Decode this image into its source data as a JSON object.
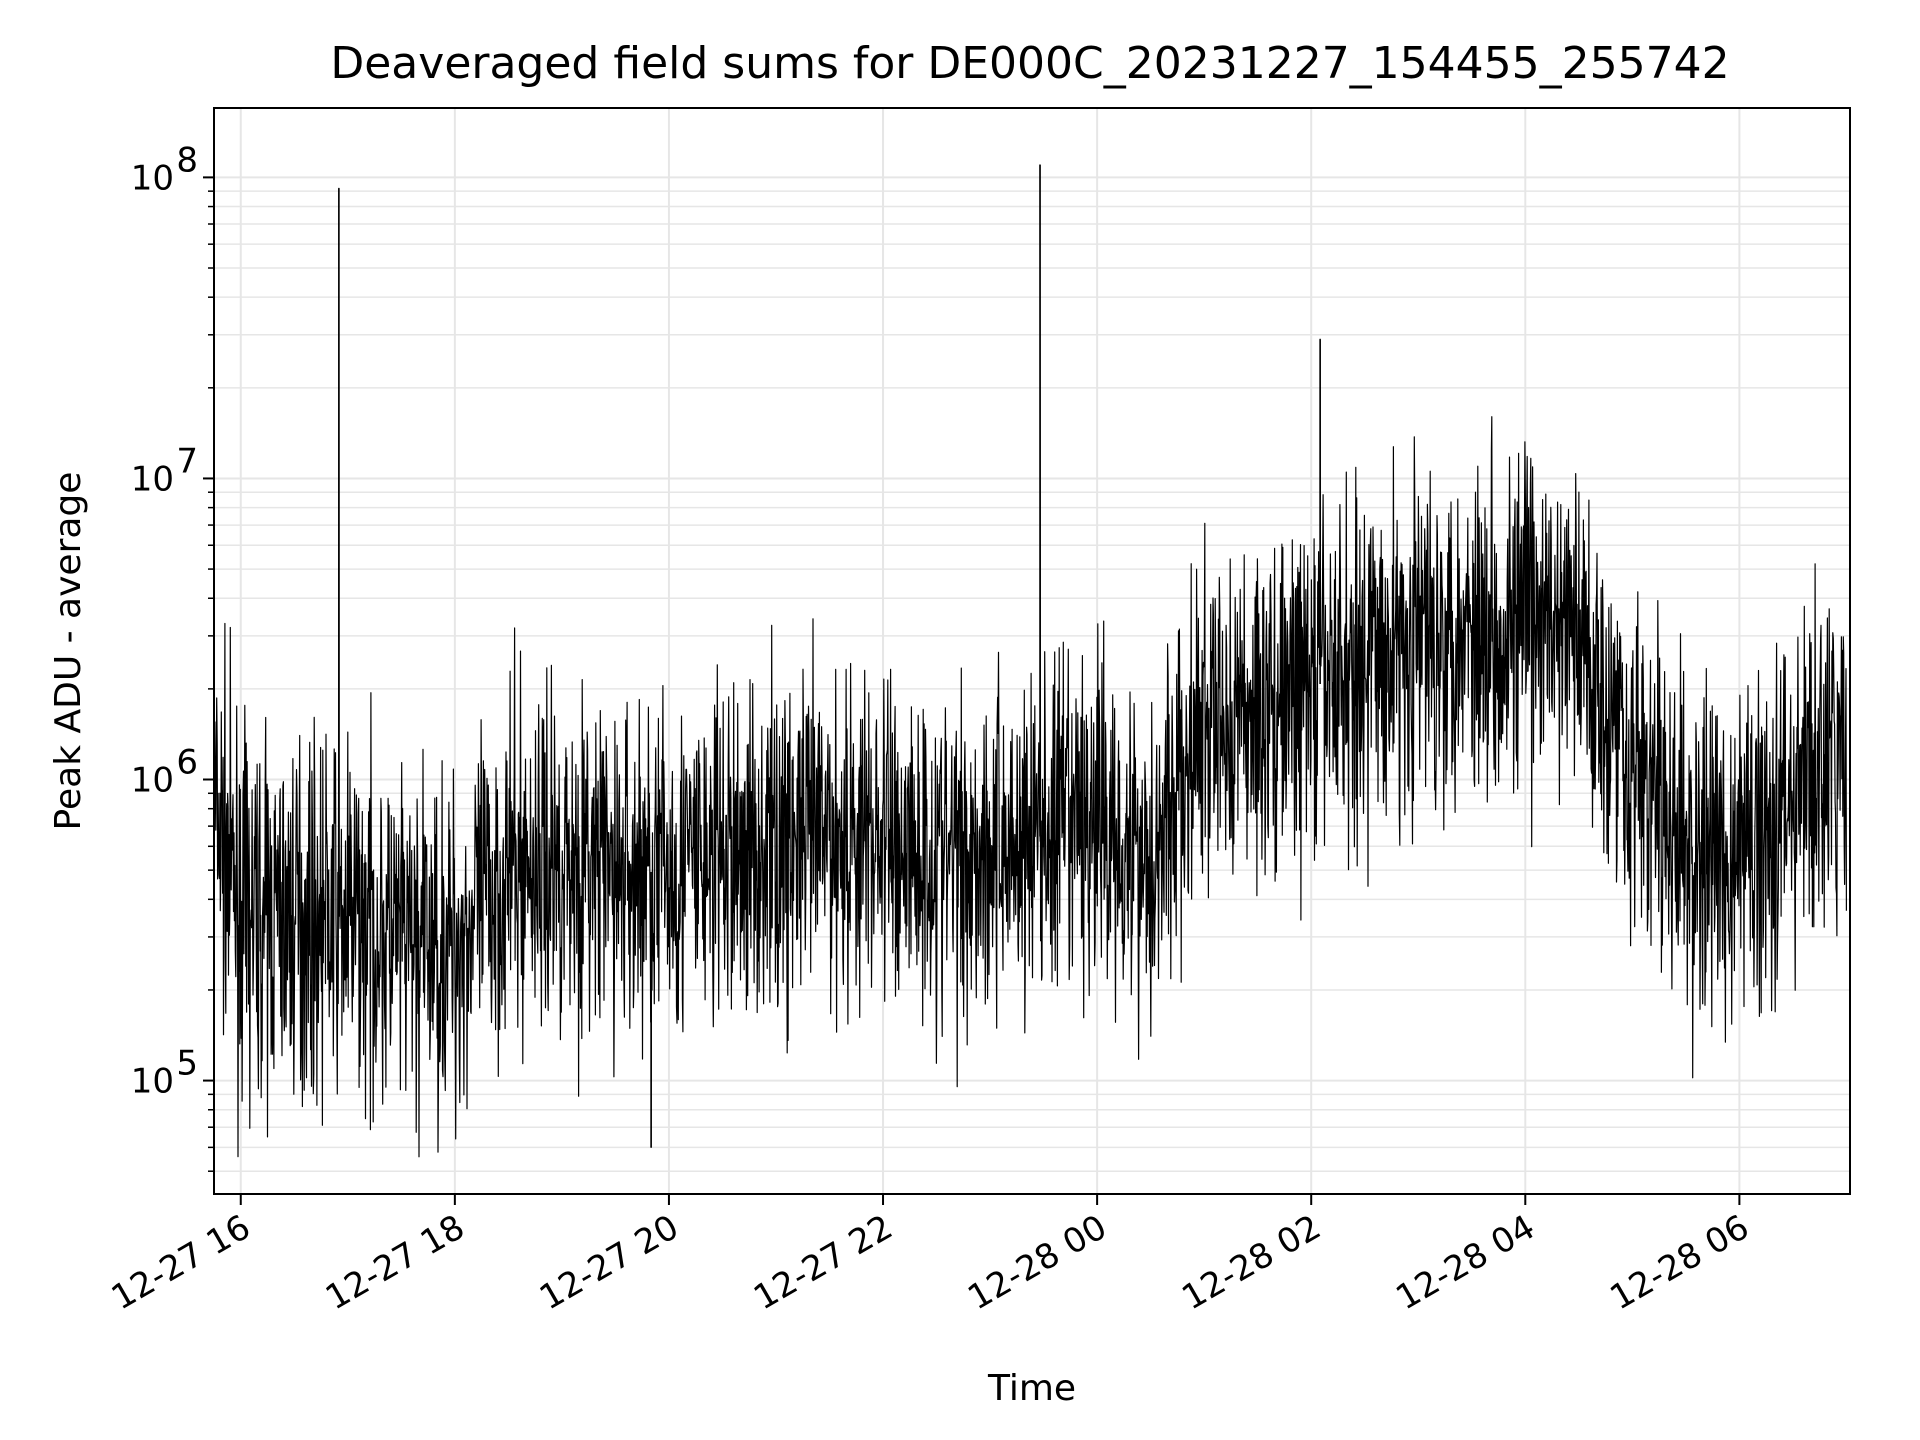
{
  "chart_data": {
    "type": "line",
    "title": "Deaveraged field sums for DE000C_20231227_154455_255742",
    "xlabel": "Time",
    "ylabel": "Peak ADU - average",
    "y_scale": "log",
    "ylim": [
      42000,
      170000000
    ],
    "xlim": [
      "2023-12-27 15:45",
      "2023-12-28 07:02"
    ],
    "grid": true,
    "grid_color": "#e6e6e6",
    "line_color": "#000000",
    "x_ticks": [
      {
        "label": "12-27 16",
        "t": "2023-12-27 16:00"
      },
      {
        "label": "12-27 18",
        "t": "2023-12-27 18:00"
      },
      {
        "label": "12-27 20",
        "t": "2023-12-27 20:00"
      },
      {
        "label": "12-27 22",
        "t": "2023-12-27 22:00"
      },
      {
        "label": "12-28 00",
        "t": "2023-12-28 00:00"
      },
      {
        "label": "12-28 02",
        "t": "2023-12-28 02:00"
      },
      {
        "label": "12-28 04",
        "t": "2023-12-28 04:00"
      },
      {
        "label": "12-28 06",
        "t": "2023-12-28 06:00"
      }
    ],
    "y_ticks": [
      {
        "base": "10",
        "exp": "5",
        "value": 100000
      },
      {
        "base": "10",
        "exp": "6",
        "value": 1000000
      },
      {
        "base": "10",
        "exp": "7",
        "value": 10000000
      },
      {
        "base": "10",
        "exp": "8",
        "value": 100000000
      }
    ],
    "series": [
      {
        "x": [
          "2023-12-27 15:45",
          "2023-12-27 16:00",
          "2023-12-27 16:30",
          "2023-12-27 17:00",
          "2023-12-27 17:30",
          "2023-12-27 18:00",
          "2023-12-27 18:30",
          "2023-12-27 19:00",
          "2023-12-27 19:30",
          "2023-12-27 20:00",
          "2023-12-27 20:30",
          "2023-12-27 21:00",
          "2023-12-27 21:30",
          "2023-12-27 22:00",
          "2023-12-27 22:30",
          "2023-12-27 23:00",
          "2023-12-27 23:30",
          "2023-12-28 00:00",
          "2023-12-28 00:30",
          "2023-12-28 01:00",
          "2023-12-28 01:30",
          "2023-12-28 02:00",
          "2023-12-28 02:30",
          "2023-12-28 03:00",
          "2023-12-28 03:30",
          "2023-12-28 04:00",
          "2023-12-28 04:30",
          "2023-12-28 05:00",
          "2023-12-28 05:30",
          "2023-12-28 06:00",
          "2023-12-28 06:30",
          "2023-12-28 07:00"
        ],
        "y": [
          800000,
          350000,
          350000,
          350000,
          280000,
          280000,
          500000,
          550000,
          480000,
          500000,
          550000,
          600000,
          650000,
          650000,
          550000,
          600000,
          650000,
          750000,
          550000,
          1400000,
          1700000,
          2000000,
          2500000,
          3000000,
          3300000,
          3300000,
          3000000,
          1200000,
          550000,
          550000,
          900000,
          1200000
        ],
        "spikes": [
          {
            "t": "2023-12-27 16:55",
            "value": 92000000
          },
          {
            "t": "2023-12-27 23:28",
            "value": 110000000
          },
          {
            "t": "2023-12-28 02:05",
            "value": 29000000
          },
          {
            "t": "2023-12-27 19:50",
            "value": 60000
          }
        ]
      }
    ]
  }
}
